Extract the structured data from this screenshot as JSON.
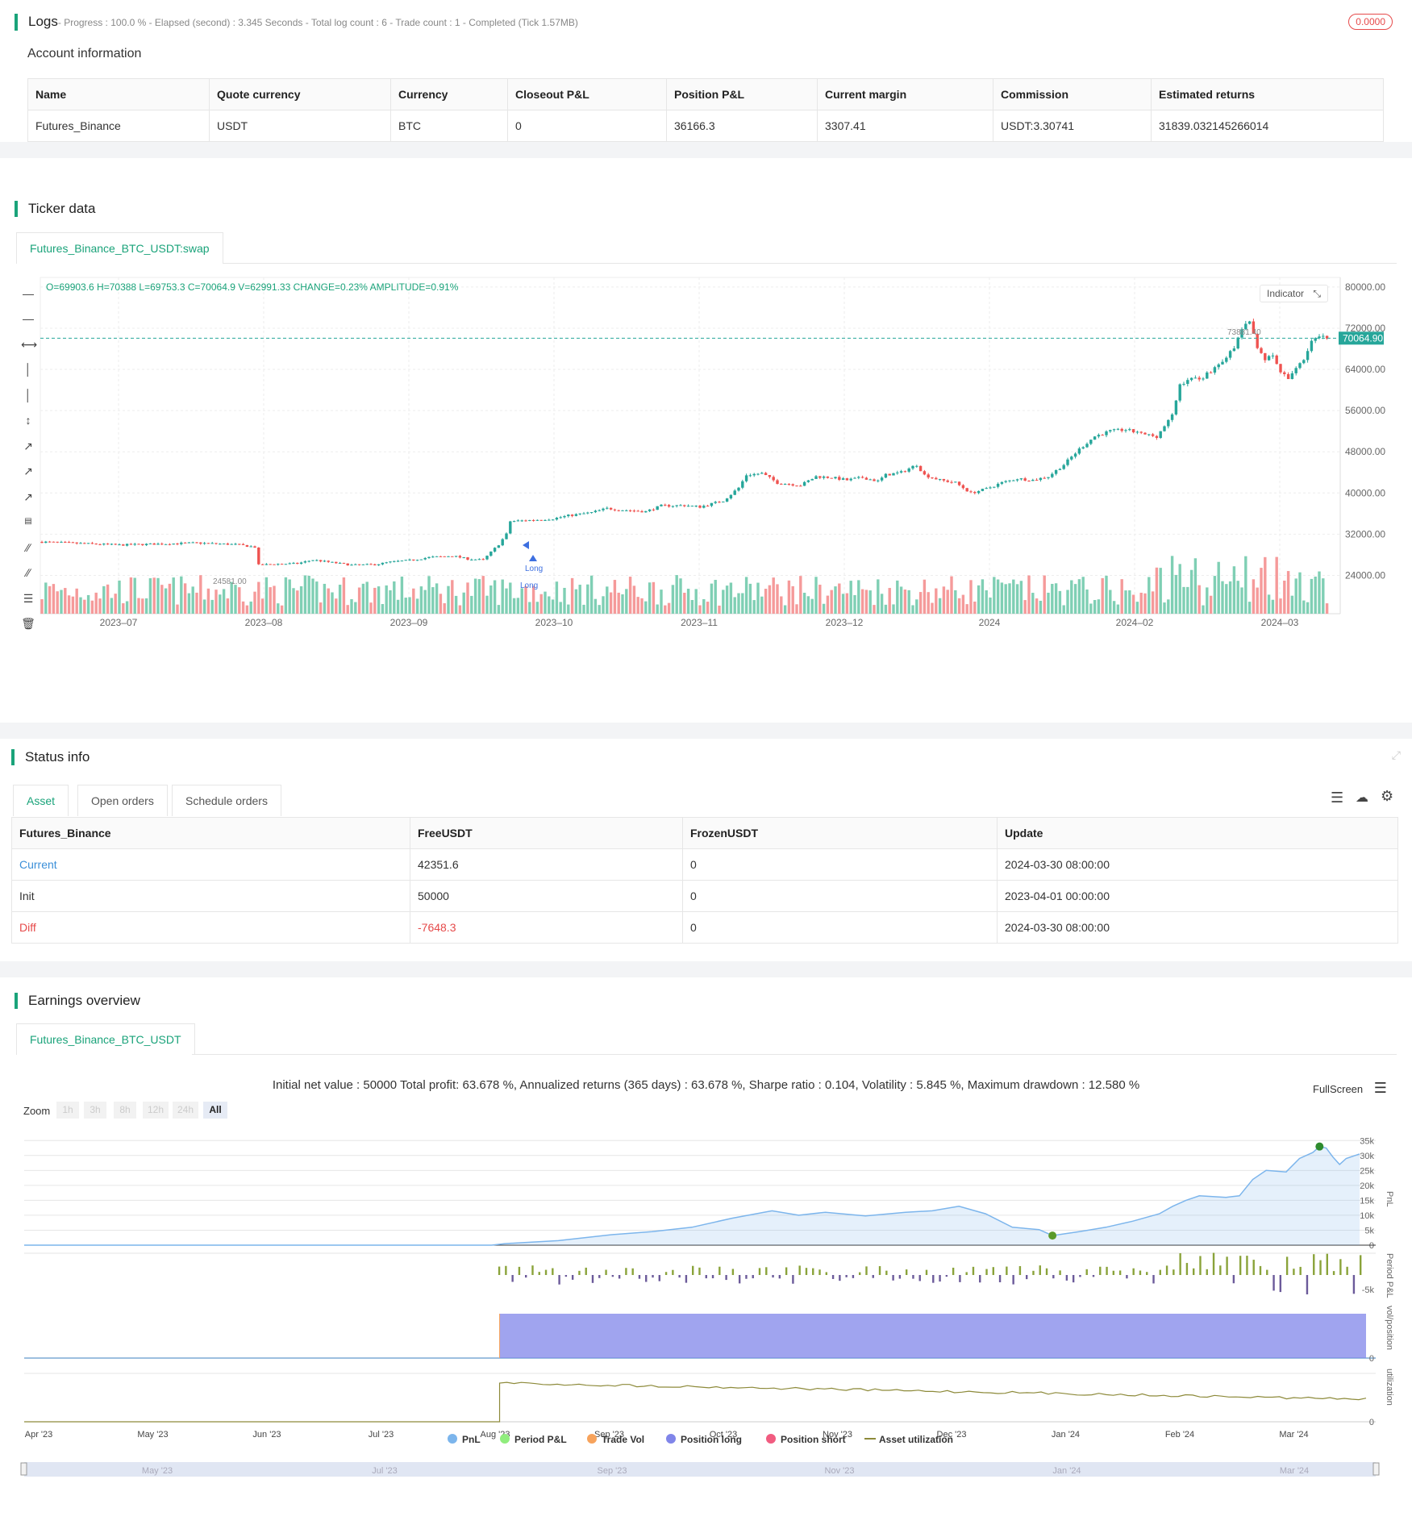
{
  "logs": {
    "title": "Logs",
    "progress": "- Progress : 100.0 % - Elapsed (second) : 3.345  Seconds - Total log count : 6 - Trade count : 1 - Completed (Tick 1.57MB)",
    "badge": "0.0000"
  },
  "account": {
    "title": "Account information",
    "headers": [
      "Name",
      "Quote currency",
      "Currency",
      "Closeout P&L",
      "Position P&L",
      "Current margin",
      "Commission",
      "Estimated returns"
    ],
    "row": [
      "Futures_Binance",
      "USDT",
      "BTC",
      "0",
      "36166.3",
      "3307.41",
      "USDT:3.30741",
      "31839.032145266014"
    ]
  },
  "ticker": {
    "title": "Ticker data",
    "tab": "Futures_Binance_BTC_USDT:swap",
    "ohlc": "O=69903.6 H=70388 L=69753.3 C=70064.9 V=62991.33 CHANGE=0.23% AMPLITUDE=0.91%",
    "indicator_label": "Indicator",
    "last_price": "70064.90",
    "high_label": "73881.40",
    "low_label": "24581.00",
    "long_label_1": "Long",
    "long_label_2": "Long",
    "colors": {
      "up": "#26a69a",
      "down": "#ef5350",
      "vol_up": "#7fcfb4",
      "vol_down": "#f59a9a",
      "accent": "#1aa37a"
    }
  },
  "chart_data": [
    {
      "type": "candlestick",
      "title": "",
      "y_ticks": [
        "80000.00",
        "72000.00",
        "64000.00",
        "56000.00",
        "48000.00",
        "40000.00",
        "32000.00",
        "24000.00"
      ],
      "x_ticks": [
        "2023–07",
        "2023–08",
        "2023–09",
        "2023–10",
        "2023–11",
        "2023–12",
        "2024",
        "2024–02",
        "2024–03"
      ],
      "ylim": [
        20000,
        84000
      ],
      "close_path": [
        [
          0,
          30500
        ],
        [
          10,
          30200
        ],
        [
          20,
          29900
        ],
        [
          30,
          30100
        ],
        [
          40,
          30300
        ],
        [
          50,
          30000
        ],
        [
          55,
          29500
        ],
        [
          56,
          26000
        ],
        [
          60,
          26200
        ],
        [
          66,
          26300
        ],
        [
          70,
          27000
        ],
        [
          76,
          26400
        ],
        [
          80,
          26000
        ],
        [
          86,
          26100
        ],
        [
          90,
          26600
        ],
        [
          96,
          27000
        ],
        [
          100,
          27500
        ],
        [
          106,
          27800
        ],
        [
          110,
          27200
        ],
        [
          114,
          27000
        ],
        [
          116,
          28500
        ],
        [
          118,
          30000
        ],
        [
          120,
          32000
        ],
        [
          121,
          34500
        ],
        [
          126,
          34700
        ],
        [
          132,
          35000
        ],
        [
          136,
          35600
        ],
        [
          142,
          36200
        ],
        [
          146,
          37000
        ],
        [
          150,
          36700
        ],
        [
          156,
          36400
        ],
        [
          160,
          37500
        ],
        [
          166,
          37600
        ],
        [
          170,
          37300
        ],
        [
          176,
          38500
        ],
        [
          180,
          41000
        ],
        [
          182,
          43500
        ],
        [
          186,
          43800
        ],
        [
          190,
          42000
        ],
        [
          196,
          41500
        ],
        [
          200,
          43200
        ],
        [
          204,
          43000
        ],
        [
          208,
          42500
        ],
        [
          212,
          43000
        ],
        [
          216,
          42300
        ],
        [
          218,
          43500
        ],
        [
          222,
          44000
        ],
        [
          226,
          45500
        ],
        [
          228,
          43500
        ],
        [
          232,
          42500
        ],
        [
          236,
          42000
        ],
        [
          240,
          40000
        ],
        [
          244,
          40800
        ],
        [
          248,
          42000
        ],
        [
          252,
          42800
        ],
        [
          256,
          42500
        ],
        [
          260,
          43200
        ],
        [
          264,
          45500
        ],
        [
          268,
          48500
        ],
        [
          272,
          51000
        ],
        [
          276,
          52000
        ],
        [
          280,
          52300
        ],
        [
          284,
          51500
        ],
        [
          288,
          51000
        ],
        [
          292,
          55000
        ],
        [
          294,
          61000
        ],
        [
          296,
          62000
        ],
        [
          300,
          62500
        ],
        [
          304,
          65000
        ],
        [
          308,
          68000
        ],
        [
          310,
          72000
        ],
        [
          312,
          73000
        ],
        [
          314,
          68500
        ],
        [
          316,
          66000
        ],
        [
          318,
          66500
        ],
        [
          320,
          63500
        ],
        [
          322,
          62000
        ],
        [
          324,
          64500
        ],
        [
          326,
          66000
        ],
        [
          328,
          69500
        ],
        [
          330,
          70200
        ],
        [
          332,
          70064.9
        ]
      ],
      "markers": [
        "Long",
        "Long"
      ]
    },
    {
      "type": "area",
      "title": "",
      "summary": "Initial net value : 50000 Total profit: 63.678 %, Annualized returns (365 days) : 63.678 %, Sharpe ratio : 0.104, Volatility : 5.845 %, Maximum drawdown : 12.580 %",
      "x_ticks": [
        "Apr '23",
        "May '23",
        "Jun '23",
        "Jul '23",
        "Aug '23",
        "Sep '23",
        "Oct '23",
        "Nov '23",
        "Dec '23",
        "Jan '24",
        "Feb '24",
        "Mar '24"
      ],
      "pnl_y_ticks": [
        "35k",
        "30k",
        "25k",
        "20k",
        "15k",
        "10k",
        "5k",
        "0"
      ],
      "period_y_ticks": [
        "-5k"
      ],
      "pos_y_ticks": [
        "0"
      ],
      "util_y_ticks": [
        "0"
      ],
      "pane_labels": [
        "PnL",
        "Period P&L",
        "vol/position",
        "utilization"
      ],
      "legend": [
        "PnL",
        "Period P&L",
        "Trade Vol",
        "Position long",
        "Position short",
        "Asset utilization"
      ],
      "legend_colors": [
        "#7cb5ec",
        "#90ed7d",
        "#f7a35c",
        "#8085e9",
        "#f15c80",
        "#8d8a3a"
      ],
      "navigator_ticks": [
        "May '23",
        "Jul '23",
        "Sep '23",
        "Nov '23",
        "Jan '24",
        "Mar '24"
      ],
      "pnl_series": [
        [
          0.0,
          0
        ],
        [
          0.35,
          0
        ],
        [
          0.36,
          500
        ],
        [
          0.4,
          1500
        ],
        [
          0.44,
          3500
        ],
        [
          0.47,
          4500
        ],
        [
          0.5,
          6000
        ],
        [
          0.53,
          9000
        ],
        [
          0.56,
          11500
        ],
        [
          0.58,
          10000
        ],
        [
          0.6,
          11000
        ],
        [
          0.63,
          9800
        ],
        [
          0.66,
          11000
        ],
        [
          0.68,
          11500
        ],
        [
          0.7,
          13000
        ],
        [
          0.72,
          10500
        ],
        [
          0.74,
          6000
        ],
        [
          0.76,
          5200
        ],
        [
          0.77,
          3200
        ],
        [
          0.79,
          4500
        ],
        [
          0.81,
          6000
        ],
        [
          0.83,
          8000
        ],
        [
          0.85,
          10500
        ],
        [
          0.86,
          13000
        ],
        [
          0.87,
          15000
        ],
        [
          0.88,
          16500
        ],
        [
          0.9,
          16000
        ],
        [
          0.91,
          16500
        ],
        [
          0.92,
          22000
        ],
        [
          0.93,
          25000
        ],
        [
          0.945,
          24500
        ],
        [
          0.955,
          29000
        ],
        [
          0.965,
          31000
        ],
        [
          0.97,
          33000
        ],
        [
          0.975,
          32500
        ],
        [
          0.98,
          29500
        ],
        [
          0.985,
          27000
        ],
        [
          0.99,
          29000
        ],
        [
          1.0,
          30500
        ]
      ],
      "peak": 33000,
      "trough": 3200
    }
  ],
  "status": {
    "title": "Status info",
    "tabs": [
      "Asset",
      "Open orders",
      "Schedule orders"
    ],
    "headers": [
      "Futures_Binance",
      "FreeUSDT",
      "FrozenUSDT",
      "Update"
    ],
    "rows": [
      [
        "Current",
        "42351.6",
        "0",
        "2024-03-30 08:00:00"
      ],
      [
        "Init",
        "50000",
        "0",
        "2023-04-01 00:00:00"
      ],
      [
        "Diff",
        "-7648.3",
        "0",
        "2024-03-30 08:00:00"
      ]
    ]
  },
  "earnings": {
    "title": "Earnings overview",
    "tab": "Futures_Binance_BTC_USDT",
    "fullscreen": "FullScreen",
    "zoom_label": "Zoom",
    "zoom_buttons": [
      "1h",
      "3h",
      "8h",
      "12h",
      "24h",
      "All"
    ]
  }
}
